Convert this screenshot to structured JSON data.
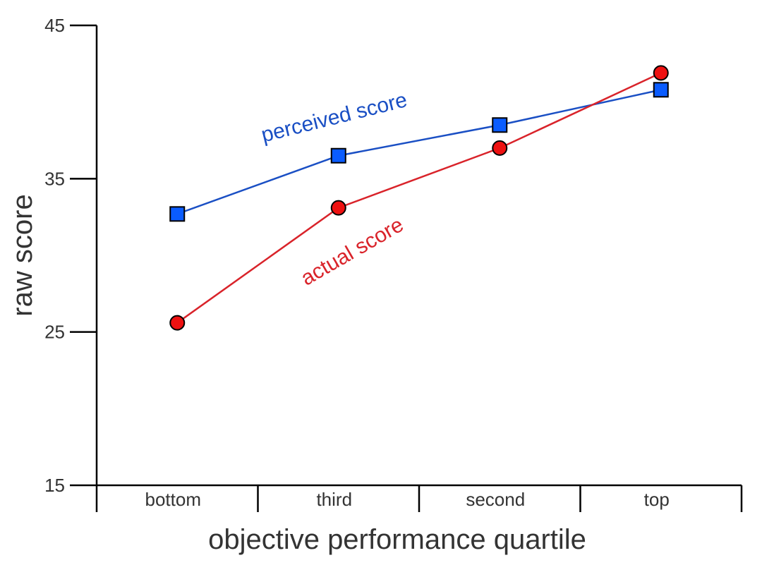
{
  "chart_data": {
    "type": "line",
    "title": "",
    "xlabel": "objective performance quartile",
    "ylabel": "raw score",
    "categories": [
      "bottom",
      "third",
      "second",
      "top"
    ],
    "ylim": [
      15,
      45
    ],
    "yticks": [
      15,
      25,
      35,
      45
    ],
    "grid": false,
    "legend": "inline labels",
    "series": [
      {
        "name": "perceived score",
        "values": [
          32.7,
          36.5,
          38.5,
          40.8
        ],
        "color": "#1a4fc4",
        "marker_fill": "#0a5cff",
        "marker": "square"
      },
      {
        "name": "actual score",
        "values": [
          25.6,
          33.1,
          37.0,
          41.9
        ],
        "color": "#d9232a",
        "marker_fill": "#ee1111",
        "marker": "circle"
      }
    ]
  }
}
